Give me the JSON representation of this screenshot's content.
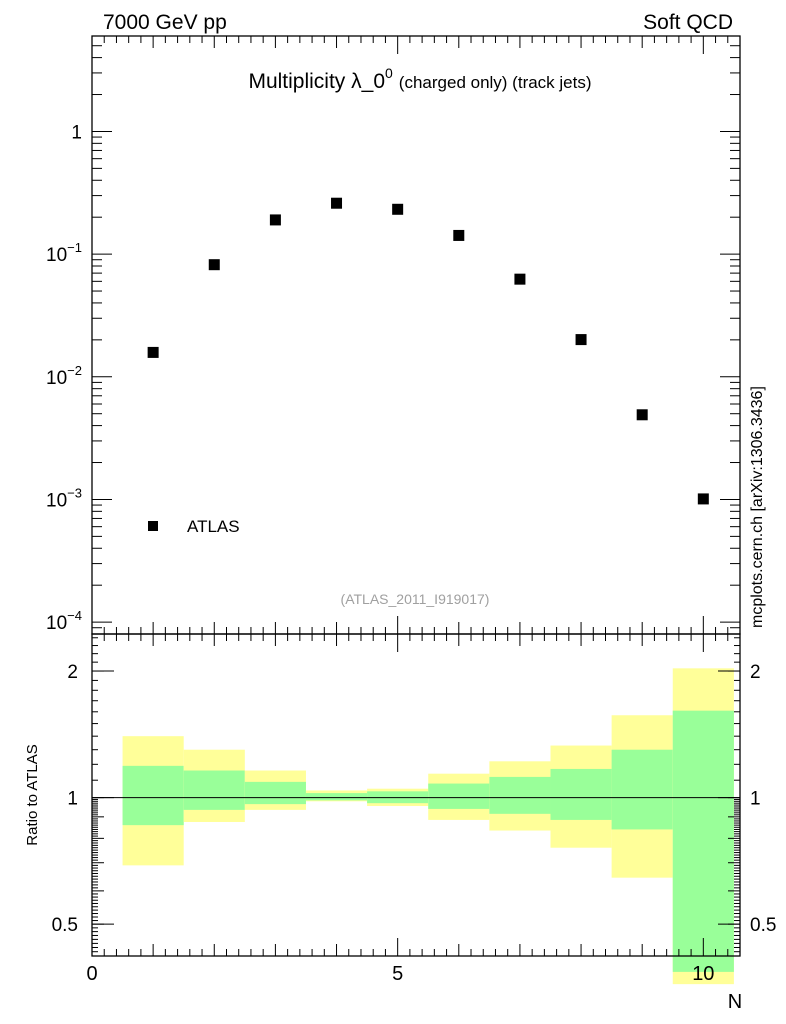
{
  "header": {
    "left": "7000 GeV pp",
    "right": "Soft QCD"
  },
  "side_label": "mcplots.cern.ch [arXiv:1306.3436]",
  "chart_data": [
    {
      "type": "scatter",
      "title_main": "Multiplicity λ_0",
      "title_sup": "0",
      "title_small": "(charged only) (track jets)",
      "watermark": "(ATLAS_2011_I919017)",
      "yscale": "log",
      "xlim": [
        0,
        10.6
      ],
      "ylim": [
        8e-05,
        6
      ],
      "y_ticks": [
        {
          "value": 1,
          "base": "1",
          "exp": ""
        },
        {
          "value": 0.1,
          "base": "10",
          "exp": "−1"
        },
        {
          "value": 0.01,
          "base": "10",
          "exp": "−2"
        },
        {
          "value": 0.001,
          "base": "10",
          "exp": "−3"
        },
        {
          "value": 0.0001,
          "base": "10",
          "exp": "−4"
        }
      ],
      "legend": {
        "label": "ATLAS",
        "placement": "bottom-left"
      },
      "series": [
        {
          "name": "ATLAS",
          "x": [
            1,
            2,
            3,
            4,
            5,
            6,
            7,
            8,
            9,
            10
          ],
          "y": [
            0.0158,
            0.082,
            0.19,
            0.26,
            0.232,
            0.142,
            0.0625,
            0.0201,
            0.0049,
            0.00101
          ]
        }
      ]
    },
    {
      "type": "area",
      "ylabel": "Ratio to ATLAS",
      "xlabel": "N",
      "yscale": "log",
      "xlim": [
        0,
        10.6
      ],
      "ylim": [
        0.42,
        2.45
      ],
      "x_ticks": [
        "0",
        "5",
        "10"
      ],
      "y_ticks": [
        {
          "value": 2,
          "label": "2"
        },
        {
          "value": 1,
          "label": "1"
        },
        {
          "value": 0.5,
          "label": "0.5"
        }
      ],
      "reference_line": 1,
      "bins": [
        {
          "lo": 0.5,
          "hi": 1.5,
          "stat_lo": 0.86,
          "stat_hi": 1.19,
          "tot_lo": 0.69,
          "tot_hi": 1.4
        },
        {
          "lo": 1.5,
          "hi": 2.5,
          "stat_lo": 0.935,
          "stat_hi": 1.16,
          "tot_lo": 0.875,
          "tot_hi": 1.3
        },
        {
          "lo": 2.5,
          "hi": 3.5,
          "stat_lo": 0.965,
          "stat_hi": 1.09,
          "tot_lo": 0.935,
          "tot_hi": 1.16
        },
        {
          "lo": 3.5,
          "hi": 4.5,
          "stat_lo": 0.985,
          "stat_hi": 1.025,
          "tot_lo": 0.98,
          "tot_hi": 1.04
        },
        {
          "lo": 4.5,
          "hi": 5.5,
          "stat_lo": 0.97,
          "stat_hi": 1.035,
          "tot_lo": 0.955,
          "tot_hi": 1.05
        },
        {
          "lo": 5.5,
          "hi": 6.5,
          "stat_lo": 0.94,
          "stat_hi": 1.08,
          "tot_lo": 0.885,
          "tot_hi": 1.14
        },
        {
          "lo": 6.5,
          "hi": 7.5,
          "stat_lo": 0.915,
          "stat_hi": 1.12,
          "tot_lo": 0.835,
          "tot_hi": 1.22
        },
        {
          "lo": 7.5,
          "hi": 8.5,
          "stat_lo": 0.885,
          "stat_hi": 1.17,
          "tot_lo": 0.76,
          "tot_hi": 1.33
        },
        {
          "lo": 8.5,
          "hi": 9.5,
          "stat_lo": 0.84,
          "stat_hi": 1.3,
          "tot_lo": 0.645,
          "tot_hi": 1.57
        },
        {
          "lo": 9.5,
          "hi": 10.5,
          "stat_lo": 0.385,
          "stat_hi": 1.61,
          "tot_lo": 0.36,
          "tot_hi": 2.03
        }
      ],
      "colors": {
        "stat": "#99ff99",
        "total": "#ffff99"
      }
    }
  ]
}
